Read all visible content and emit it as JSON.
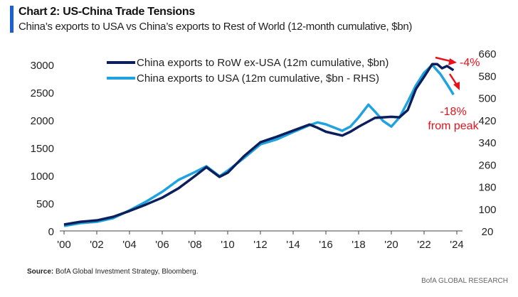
{
  "title": "Chart 2: US-China Trade Tensions",
  "subtitle": "China’s exports to USA vs China’s exports to Rest of World (12-month cumulative, $bn)",
  "source_label": "Source:",
  "source_text": "BofA Global Investment Strategy, Bloomberg.",
  "brand": "BofA GLOBAL RESEARCH",
  "chart_data": {
    "type": "line",
    "x_ticks": [
      "'00",
      "'02",
      "'04",
      "'06",
      "'08",
      "'10",
      "'12",
      "'14",
      "'16",
      "'18",
      "'20",
      "'22",
      "'24"
    ],
    "xlim": [
      2000,
      2024
    ],
    "y_left": {
      "ticks": [
        "0",
        "500",
        "1000",
        "1500",
        "2000",
        "2500",
        "3000"
      ],
      "lim": [
        0,
        3000
      ]
    },
    "y_right": {
      "ticks": [
        "20",
        "100",
        "180",
        "260",
        "340",
        "420",
        "500",
        "580",
        "660"
      ],
      "lim": [
        20,
        660
      ]
    },
    "annotations": {
      "row_change": "-4%",
      "usa_change": "-18%",
      "usa_change_note": "from peak"
    },
    "colors": {
      "row": "#0b1f5c",
      "usa": "#1ea3e0",
      "annot": "#e8121b"
    },
    "series": [
      {
        "name": "China exports to RoW ex-USA (12m cumulative, $bn)",
        "axis": "left",
        "x": [
          2000,
          2001,
          2002,
          2003,
          2004,
          2005,
          2006,
          2007,
          2008,
          2008.7,
          2009.5,
          2010,
          2011,
          2012,
          2013,
          2014,
          2015,
          2015.5,
          2016,
          2017,
          2017.5,
          2018,
          2019,
          2020,
          2020.5,
          2021,
          2021.5,
          2022,
          2022.5,
          2022.8,
          2023.1,
          2023.4,
          2023.8
        ],
        "y": [
          115,
          165,
          190,
          255,
          360,
          475,
          600,
          770,
          990,
          1150,
          975,
          1050,
          1350,
          1600,
          1700,
          1810,
          1920,
          1860,
          1790,
          1720,
          1790,
          1880,
          2040,
          2060,
          2050,
          2180,
          2560,
          2780,
          3010,
          3010,
          2935,
          2975,
          2900
        ]
      },
      {
        "name": "China exports to USA (12m cumulative, $bn - RHS)",
        "axis": "right",
        "x": [
          2000,
          2001,
          2002,
          2003,
          2004,
          2005,
          2006,
          2007,
          2008,
          2008.7,
          2009.5,
          2010,
          2011,
          2012,
          2013,
          2014,
          2015,
          2015.5,
          2016,
          2017,
          2017.5,
          2018,
          2018.6,
          2019,
          2019.5,
          2020,
          2020.5,
          2021,
          2021.5,
          2022,
          2022.5,
          2023,
          2023.4,
          2023.8
        ],
        "y": [
          38,
          48,
          53,
          66,
          94,
          125,
          161,
          204,
          232,
          253,
          217,
          237,
          283,
          332,
          350,
          376,
          401,
          411,
          404,
          381,
          396,
          429,
          475,
          450,
          416,
          396,
          429,
          485,
          544,
          590,
          618,
          585,
          549,
          511
        ]
      }
    ]
  }
}
